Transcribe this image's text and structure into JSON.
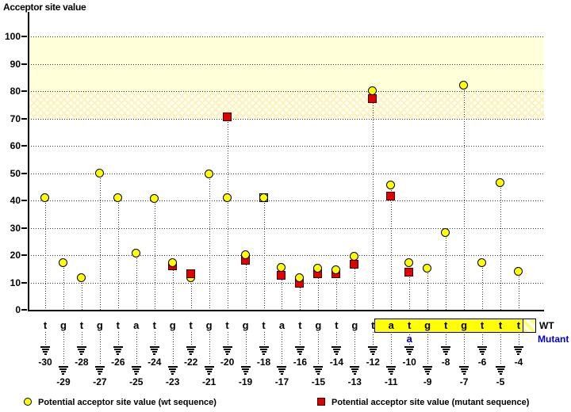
{
  "header": {
    "title": "Acceptor site value"
  },
  "annotations": {
    "wt_label": "WT",
    "mutant_label": "Mutant"
  },
  "legend": {
    "wt": "Potential acceptor site value (wt sequence)",
    "mutant": "Potential acceptor site value (mutant sequence)"
  },
  "colors": {
    "wt_marker": "#ffff00",
    "mutant_marker": "#e00000",
    "highlight_box": "#ffff00",
    "mutant_text": "#0000cc",
    "band_solid": "#ffffd9"
  },
  "chart_data": {
    "type": "scatter",
    "title": "Acceptor site value",
    "ylabel": "Acceptor site value",
    "xlabel": "",
    "ylim": [
      0,
      100
    ],
    "y_ticks": [
      0,
      10,
      20,
      30,
      40,
      50,
      60,
      70,
      80,
      90,
      100
    ],
    "grid": "dotted-horizontal",
    "threshold_bands": [
      {
        "from": 80,
        "to": 100,
        "style": "solid"
      },
      {
        "from": 70,
        "to": 80,
        "style": "hatched"
      }
    ],
    "positions": [
      -30,
      -29,
      -28,
      -27,
      -26,
      -25,
      -24,
      -23,
      -22,
      -21,
      -20,
      -19,
      -18,
      -17,
      -16,
      -15,
      -14,
      -13,
      -12,
      -11,
      -10,
      -9,
      -8,
      -7,
      -6,
      -5,
      -4
    ],
    "sequence_wt": [
      "t",
      "g",
      "t",
      "g",
      "t",
      "a",
      "t",
      "g",
      "t",
      "g",
      "t",
      "g",
      "t",
      "a",
      "t",
      "g",
      "t",
      "g",
      "t",
      "a",
      "t",
      "g",
      "t",
      "g",
      "t",
      "t",
      "t"
    ],
    "mutation": {
      "position": -10,
      "wt_base": "t",
      "mutant_base": "a"
    },
    "highlighted_region": {
      "from": -12,
      "to": -4
    },
    "series": [
      {
        "name": "Potential acceptor site value (wt sequence)",
        "marker": "circle",
        "color": "#ffff00",
        "values": [
          41,
          17,
          11.5,
          50,
          41,
          20.5,
          40.5,
          17,
          11.5,
          49.5,
          41,
          20,
          41,
          15.5,
          11.5,
          15,
          14.5,
          19.5,
          80,
          45.5,
          17,
          15,
          28,
          82,
          17,
          46.5,
          14
        ]
      },
      {
        "name": "Potential acceptor site value (mutant sequence)",
        "marker": "square",
        "color": "#e00000",
        "values": [
          null,
          null,
          null,
          null,
          null,
          null,
          null,
          16,
          13,
          null,
          70.5,
          18,
          41,
          12.5,
          9.5,
          13,
          13,
          16.5,
          77,
          41.5,
          13.5,
          null,
          null,
          null,
          null,
          null,
          null
        ]
      }
    ],
    "legend_position": "bottom"
  }
}
